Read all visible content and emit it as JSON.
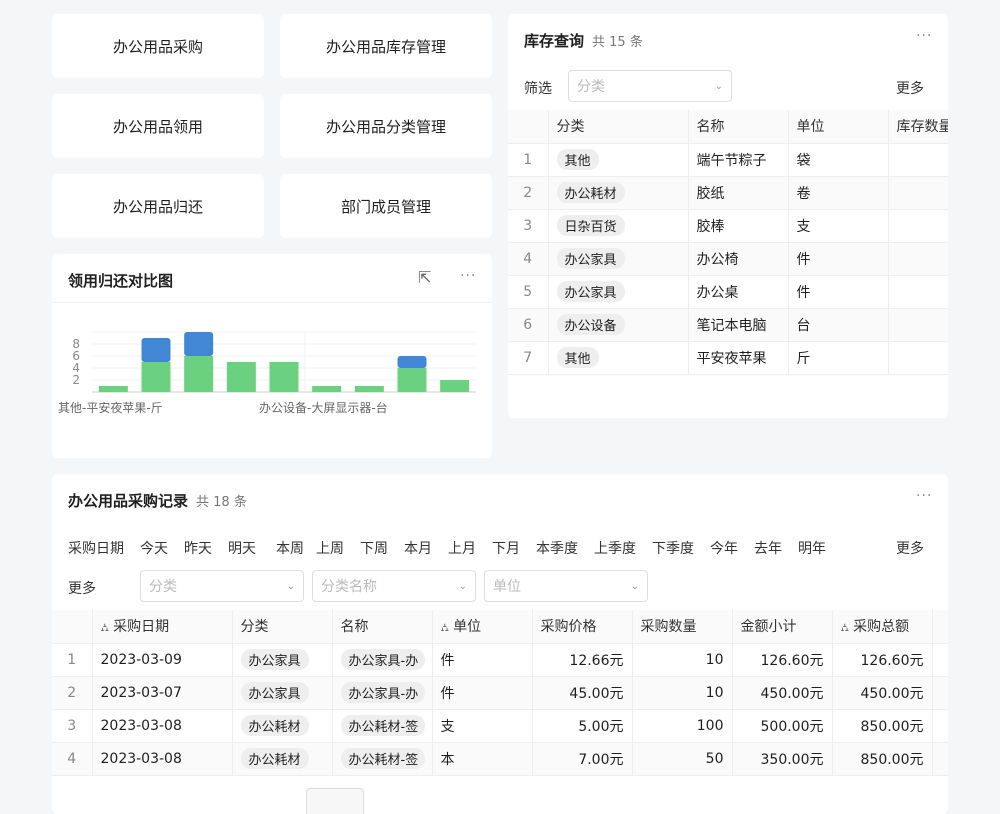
{
  "nav_buttons": [
    "办公用品采购",
    "办公用品库存管理",
    "办公用品领用",
    "办公用品分类管理",
    "办公用品归还",
    "部门成员管理"
  ],
  "chart_card": {
    "title": "领用归还对比图",
    "more": "···"
  },
  "chart_data": {
    "type": "bar",
    "stacked": true,
    "categories": [
      "其他-平安夜苹果-斤",
      "",
      "",
      "",
      "办公设备-大屏显示器-台",
      "",
      "",
      "",
      ""
    ],
    "x_tick_labels": [
      "其他-平安夜苹果-斤",
      "办公设备-大屏显示器-台"
    ],
    "series": [
      {
        "values": [
          1,
          5,
          6,
          5,
          5,
          1,
          1,
          4,
          2
        ],
        "color": "#6bd07f"
      },
      {
        "values": [
          0,
          4,
          4,
          0,
          0,
          0,
          0,
          2,
          0
        ],
        "color": "#4287d6"
      }
    ],
    "yticks": [
      2,
      4,
      6,
      8
    ],
    "ylim": [
      0,
      10
    ],
    "grid": true
  },
  "stock": {
    "title": "库存查询",
    "count": "共 15 条",
    "more": "···",
    "filter_label": "筛选",
    "filter_placeholder": "分类",
    "more_label": "更多",
    "columns": [
      "",
      "分类",
      "名称",
      "单位",
      "库存数量"
    ],
    "rows": [
      [
        "1",
        "其他",
        "端午节粽子",
        "袋"
      ],
      [
        "2",
        "办公耗材",
        "胶纸",
        "卷"
      ],
      [
        "3",
        "日杂百货",
        "胶棒",
        "支"
      ],
      [
        "4",
        "办公家具",
        "办公椅",
        "件"
      ],
      [
        "5",
        "办公家具",
        "办公桌",
        "件"
      ],
      [
        "6",
        "办公设备",
        "笔记本电脑",
        "台"
      ],
      [
        "7",
        "其他",
        "平安夜苹果",
        "斤"
      ]
    ]
  },
  "purchase": {
    "title": "办公用品采购记录",
    "count": "共 18 条",
    "more": "···",
    "date_label": "采购日期",
    "date_options": [
      "今天",
      "昨天",
      "明天",
      "本周",
      "上周",
      "下周",
      "本月",
      "上月",
      "下月",
      "本季度",
      "上季度",
      "下季度",
      "今年",
      "去年",
      "明年"
    ],
    "more_label": "更多",
    "more_label2": "更多",
    "filters": [
      "分类",
      "分类名称",
      "单位"
    ],
    "columns": [
      "",
      "采购日期",
      "分类",
      "名称",
      "单位",
      "采购价格",
      "采购数量",
      "金额小计",
      "采购总额"
    ],
    "rows": [
      [
        "1",
        "2023-03-09",
        "办公家具",
        "办公家具-办",
        "件",
        "12.66元",
        "10",
        "126.60元",
        "126.60元"
      ],
      [
        "2",
        "2023-03-07",
        "办公家具",
        "办公家具-办",
        "件",
        "45.00元",
        "10",
        "450.00元",
        "450.00元"
      ],
      [
        "3",
        "2023-03-08",
        "办公耗材",
        "办公耗材-签",
        "支",
        "5.00元",
        "100",
        "500.00元",
        "850.00元"
      ],
      [
        "4",
        "2023-03-08",
        "办公耗材",
        "办公耗材-签",
        "本",
        "7.00元",
        "50",
        "350.00元",
        "850.00元"
      ]
    ]
  }
}
